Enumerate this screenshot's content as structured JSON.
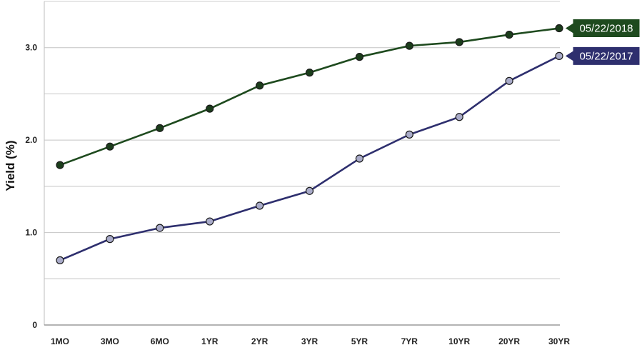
{
  "chart_data": {
    "type": "line",
    "title": "",
    "xlabel": "",
    "ylabel": "Yield (%)",
    "categories": [
      "1MO",
      "3MO",
      "6MO",
      "1YR",
      "2YR",
      "3YR",
      "5YR",
      "7YR",
      "10YR",
      "20YR",
      "30YR"
    ],
    "ylim": [
      0,
      3.5
    ],
    "yticks": [
      0,
      0.5,
      1.0,
      1.5,
      2.0,
      2.5,
      3.0
    ],
    "ytick_labels": [
      "0",
      "",
      "1.0",
      "",
      "2.0",
      "",
      "3.0"
    ],
    "grid": true,
    "legend": "end-of-line tags on the right",
    "series": [
      {
        "name": "05/22/2018",
        "color": "#1e4a1e",
        "marker_color": "#1b3d1b",
        "values": [
          1.73,
          1.93,
          2.13,
          2.34,
          2.59,
          2.73,
          2.9,
          3.02,
          3.06,
          3.14,
          3.21
        ]
      },
      {
        "name": "05/22/2017",
        "color": "#2e2f6e",
        "marker_color": "#a9abc9",
        "values": [
          0.7,
          0.93,
          1.05,
          1.12,
          1.29,
          1.45,
          1.8,
          2.06,
          2.25,
          2.64,
          2.91
        ]
      }
    ]
  }
}
